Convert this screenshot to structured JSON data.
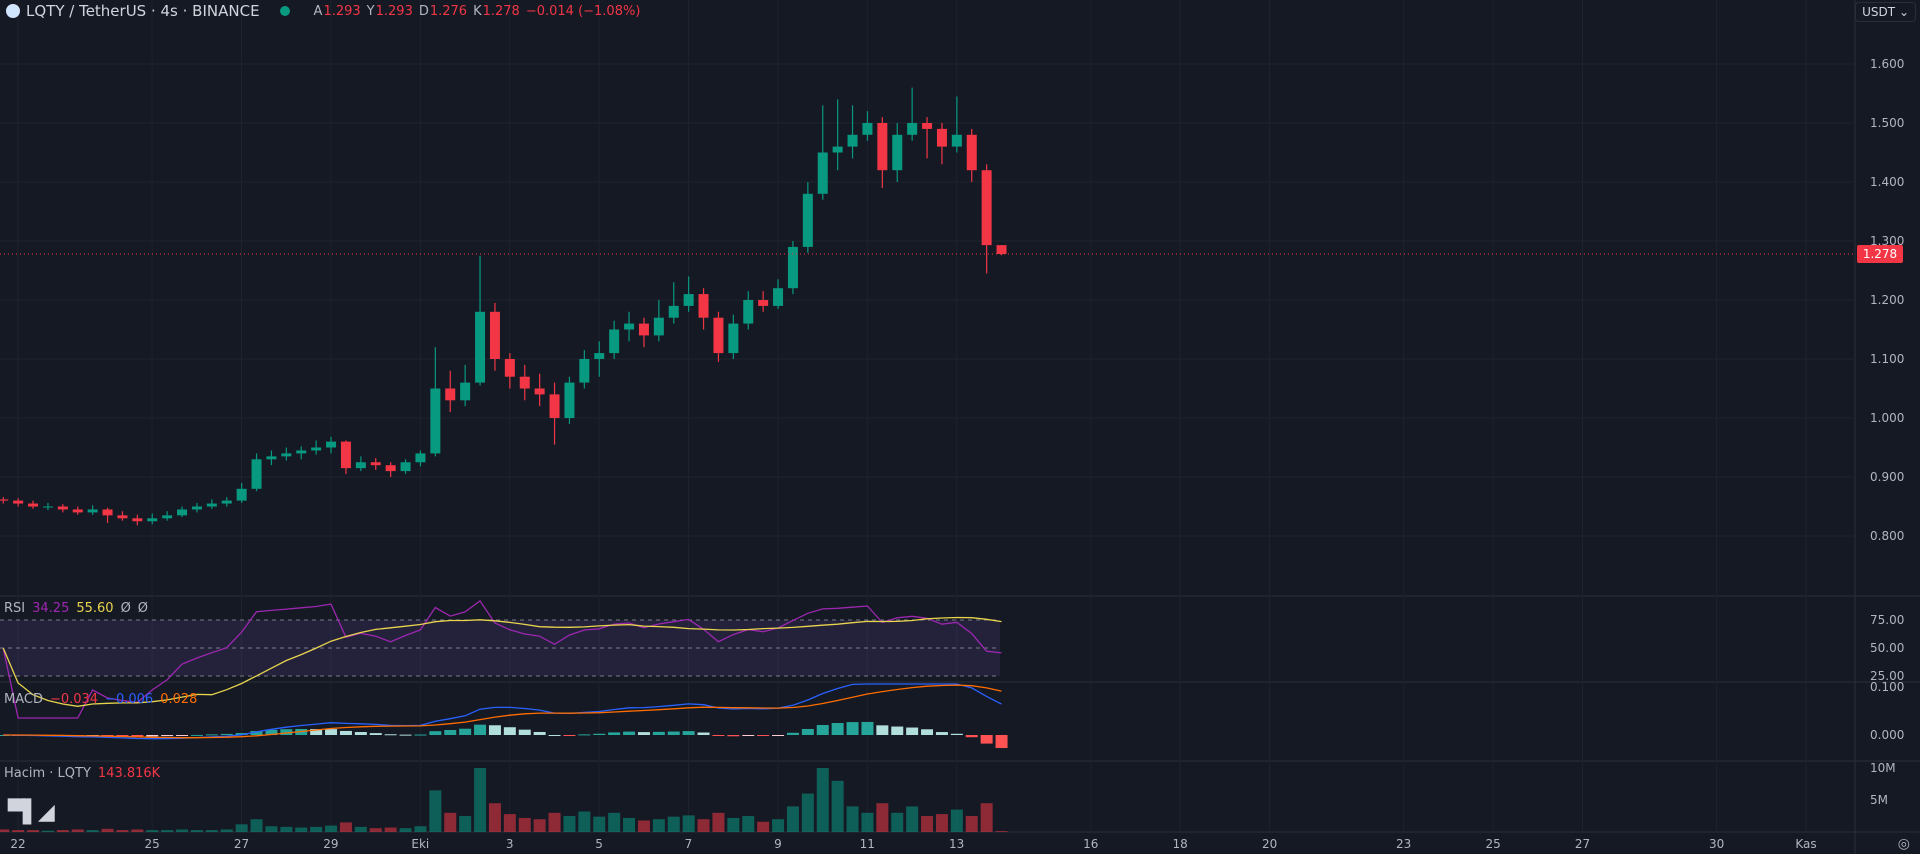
{
  "header": {
    "symbol": "LQTY / TetherUS · 4s · BINANCE",
    "o_label": "A",
    "o": "1.293",
    "h_label": "Y",
    "h": "1.293",
    "l_label": "D",
    "l": "1.276",
    "c_label": "K",
    "c": "1.278",
    "change": "−0.014 (−1.08%)"
  },
  "currency_selector": "USDT",
  "colors": {
    "up": "#089981",
    "down": "#f23645",
    "rsi": "#9c27b0",
    "rsi_ma": "#e8d44d",
    "macd": "#2962ff",
    "signal": "#ff6d00",
    "background": "#151924"
  },
  "rsi_header": {
    "name": "RSI",
    "value": "34.25",
    "ma": "55.60",
    "x1": "Ø",
    "x2": "Ø"
  },
  "macd_header": {
    "name": "MACD",
    "hist": "−0.034",
    "macd": "−0.006",
    "signal": "0.028"
  },
  "volume_header": {
    "name": "Hacim · LQTY",
    "value": "143.816K"
  },
  "logo": "TV",
  "chart_data": {
    "type": "candlestick",
    "price_axis": {
      "ticks": [
        "1.600",
        "1.500",
        "1.400",
        "1.300",
        "1.200",
        "1.100",
        "1.000",
        "0.900",
        "0.800"
      ],
      "range": [
        0.8,
        1.6
      ]
    },
    "last_price": "1.278",
    "rsi_axis": [
      "75.00",
      "50.00",
      "25.00"
    ],
    "macd_axis": [
      "0.100",
      "0.000"
    ],
    "volume_axis": [
      "10M",
      "5M"
    ],
    "time_axis": [
      {
        "text": "22",
        "date": "2024-09-22"
      },
      {
        "text": "25",
        "date": "2024-09-25"
      },
      {
        "text": "27",
        "date": "2024-09-27"
      },
      {
        "text": "29",
        "date": "2024-09-29"
      },
      {
        "text": "Eki",
        "date": "2024-10-01"
      },
      {
        "text": "3",
        "date": "2024-10-03"
      },
      {
        "text": "5",
        "date": "2024-10-05"
      },
      {
        "text": "7",
        "date": "2024-10-07"
      },
      {
        "text": "9",
        "date": "2024-10-09"
      },
      {
        "text": "11",
        "date": "2024-10-11"
      },
      {
        "text": "13",
        "date": "2024-10-13"
      },
      {
        "text": "16",
        "date": "2024-10-16"
      },
      {
        "text": "18",
        "date": "2024-10-18"
      },
      {
        "text": "20",
        "date": "2024-10-20"
      },
      {
        "text": "23",
        "date": "2024-10-23"
      },
      {
        "text": "25",
        "date": "2024-10-25"
      },
      {
        "text": "27",
        "date": "2024-10-27"
      },
      {
        "text": "30",
        "date": "2024-10-30"
      },
      {
        "text": "Kas",
        "date": "2024-11-01"
      }
    ],
    "ohlc": [
      [
        0.862,
        0.866,
        0.855,
        0.86
      ],
      [
        0.86,
        0.864,
        0.85,
        0.855
      ],
      [
        0.855,
        0.86,
        0.846,
        0.85
      ],
      [
        0.85,
        0.856,
        0.844,
        0.85
      ],
      [
        0.85,
        0.854,
        0.84,
        0.845
      ],
      [
        0.845,
        0.85,
        0.836,
        0.84
      ],
      [
        0.84,
        0.852,
        0.836,
        0.845
      ],
      [
        0.845,
        0.848,
        0.822,
        0.835
      ],
      [
        0.835,
        0.842,
        0.826,
        0.83
      ],
      [
        0.83,
        0.836,
        0.818,
        0.825
      ],
      [
        0.825,
        0.838,
        0.82,
        0.83
      ],
      [
        0.83,
        0.842,
        0.826,
        0.835
      ],
      [
        0.835,
        0.85,
        0.832,
        0.845
      ],
      [
        0.845,
        0.856,
        0.84,
        0.85
      ],
      [
        0.85,
        0.862,
        0.846,
        0.855
      ],
      [
        0.855,
        0.866,
        0.85,
        0.86
      ],
      [
        0.86,
        0.89,
        0.856,
        0.88
      ],
      [
        0.88,
        0.94,
        0.876,
        0.93
      ],
      [
        0.93,
        0.945,
        0.92,
        0.935
      ],
      [
        0.935,
        0.95,
        0.928,
        0.94
      ],
      [
        0.94,
        0.952,
        0.93,
        0.945
      ],
      [
        0.945,
        0.962,
        0.938,
        0.95
      ],
      [
        0.95,
        0.968,
        0.94,
        0.96
      ],
      [
        0.96,
        0.962,
        0.905,
        0.915
      ],
      [
        0.915,
        0.935,
        0.91,
        0.925
      ],
      [
        0.925,
        0.932,
        0.912,
        0.92
      ],
      [
        0.92,
        0.925,
        0.9,
        0.91
      ],
      [
        0.91,
        0.93,
        0.905,
        0.925
      ],
      [
        0.925,
        0.945,
        0.918,
        0.94
      ],
      [
        0.94,
        1.12,
        0.935,
        1.05
      ],
      [
        1.05,
        1.08,
        1.01,
        1.03
      ],
      [
        1.03,
        1.09,
        1.02,
        1.06
      ],
      [
        1.06,
        1.275,
        1.055,
        1.18
      ],
      [
        1.18,
        1.195,
        1.08,
        1.1
      ],
      [
        1.1,
        1.11,
        1.05,
        1.07
      ],
      [
        1.07,
        1.09,
        1.03,
        1.05
      ],
      [
        1.05,
        1.075,
        1.02,
        1.04
      ],
      [
        1.04,
        1.06,
        0.955,
        1.0
      ],
      [
        1.0,
        1.07,
        0.99,
        1.06
      ],
      [
        1.06,
        1.115,
        1.05,
        1.1
      ],
      [
        1.1,
        1.13,
        1.07,
        1.11
      ],
      [
        1.11,
        1.165,
        1.1,
        1.15
      ],
      [
        1.15,
        1.18,
        1.13,
        1.16
      ],
      [
        1.16,
        1.17,
        1.12,
        1.14
      ],
      [
        1.14,
        1.2,
        1.13,
        1.17
      ],
      [
        1.17,
        1.23,
        1.16,
        1.19
      ],
      [
        1.19,
        1.24,
        1.18,
        1.21
      ],
      [
        1.21,
        1.22,
        1.15,
        1.17
      ],
      [
        1.17,
        1.18,
        1.095,
        1.11
      ],
      [
        1.11,
        1.175,
        1.1,
        1.16
      ],
      [
        1.16,
        1.215,
        1.15,
        1.2
      ],
      [
        1.2,
        1.215,
        1.18,
        1.19
      ],
      [
        1.19,
        1.235,
        1.185,
        1.22
      ],
      [
        1.22,
        1.3,
        1.21,
        1.29
      ],
      [
        1.29,
        1.4,
        1.28,
        1.38
      ],
      [
        1.38,
        1.53,
        1.37,
        1.45
      ],
      [
        1.45,
        1.54,
        1.42,
        1.46
      ],
      [
        1.46,
        1.53,
        1.44,
        1.48
      ],
      [
        1.48,
        1.52,
        1.47,
        1.5
      ],
      [
        1.5,
        1.51,
        1.39,
        1.42
      ],
      [
        1.42,
        1.5,
        1.4,
        1.48
      ],
      [
        1.48,
        1.56,
        1.47,
        1.5
      ],
      [
        1.5,
        1.51,
        1.44,
        1.49
      ],
      [
        1.49,
        1.5,
        1.43,
        1.46
      ],
      [
        1.46,
        1.545,
        1.45,
        1.48
      ],
      [
        1.48,
        1.49,
        1.4,
        1.42
      ],
      [
        1.42,
        1.43,
        1.245,
        1.293
      ],
      [
        1.293,
        1.293,
        1.276,
        1.278
      ]
    ],
    "volume_millions": [
      0.4,
      0.3,
      0.3,
      0.2,
      0.3,
      0.4,
      0.3,
      0.5,
      0.3,
      0.4,
      0.3,
      0.3,
      0.4,
      0.3,
      0.3,
      0.4,
      1.2,
      2.0,
      0.9,
      0.8,
      0.7,
      0.8,
      1.0,
      1.5,
      0.8,
      0.6,
      0.7,
      0.6,
      0.9,
      6.5,
      3.0,
      2.5,
      10.0,
      4.5,
      2.8,
      2.2,
      2.0,
      3.0,
      2.5,
      3.2,
      2.4,
      3.0,
      2.2,
      1.8,
      2.0,
      2.4,
      2.6,
      2.0,
      3.0,
      2.2,
      2.5,
      1.6,
      2.0,
      4.0,
      6.0,
      10.0,
      8.0,
      4.0,
      3.0,
      4.5,
      3.0,
      4.0,
      2.5,
      2.8,
      3.5,
      2.5,
      4.5,
      0.14
    ]
  }
}
